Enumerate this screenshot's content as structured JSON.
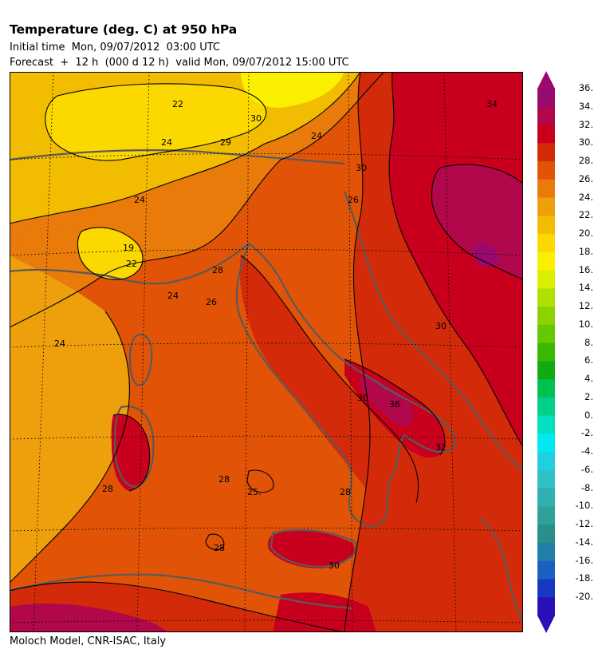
{
  "header": {
    "title": "Temperature (deg. C) at 950 hPa",
    "initial_time": "Initial time  Mon, 09/07/2012  03:00 UTC",
    "forecast": "Forecast  +  12 h  (000 d 12 h)  valid Mon, 09/07/2012 15:00 UTC"
  },
  "footer": {
    "credit": "Moloch Model, CNR-ISAC, Italy"
  },
  "legend": {
    "labels": [
      "36.",
      "34.",
      "32.",
      "30.",
      "28.",
      "26.",
      "24.",
      "22.",
      "20.",
      "18.",
      "16.",
      "14.",
      "12.",
      "10.",
      "8.",
      "6.",
      "4.",
      "2.",
      "0.",
      "-2.",
      "-4.",
      "-6.",
      "-8.",
      "-10.",
      "-12.",
      "-14.",
      "-16.",
      "-18.",
      "-20."
    ],
    "colors": [
      "#9a0a6e",
      "#b0084a",
      "#c8001e",
      "#d32b0a",
      "#e15407",
      "#e87b0a",
      "#eea00c",
      "#f2bc00",
      "#fbd800",
      "#faf000",
      "#d8f000",
      "#b0e000",
      "#8cd200",
      "#66c800",
      "#3cb800",
      "#12aa12",
      "#00c050",
      "#00d08c",
      "#00e0c0",
      "#00e8f0",
      "#20d0e0",
      "#30c0c8",
      "#30b0b0",
      "#30a098",
      "#289088",
      "#2080a8",
      "#1a60c0",
      "#1838c0",
      "#2a10b8"
    ],
    "top_cap_color": "#9a0a6e",
    "bottom_cap_color": "#2a10b8"
  },
  "map": {
    "contour_labels": [
      "22",
      "30",
      "24",
      "24",
      "29",
      "26",
      "30",
      "34",
      "24",
      "19",
      "22",
      "28",
      "26",
      "24",
      "24",
      "30",
      "30",
      "36",
      "32",
      "28",
      "25.",
      "28",
      "28",
      "30",
      "28"
    ]
  }
}
